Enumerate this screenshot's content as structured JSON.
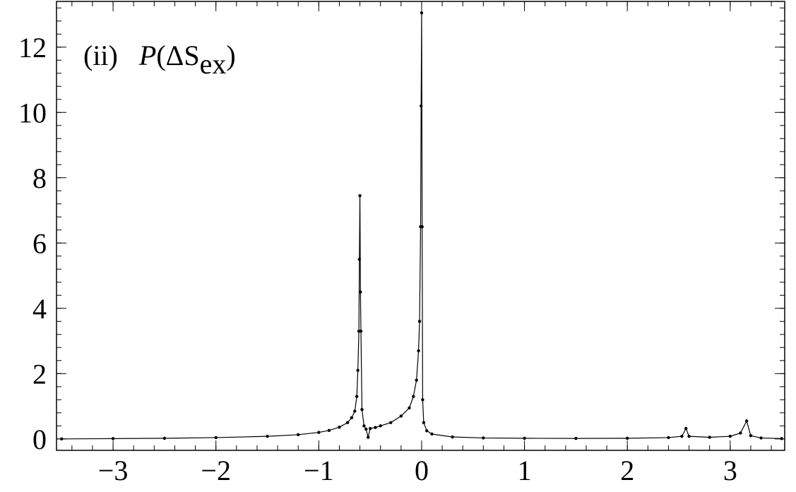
{
  "chart_data": {
    "type": "line",
    "annotation": {
      "tag": "(ii)",
      "parts": [
        "P",
        "(ΔS",
        "ex",
        ")"
      ]
    },
    "x": [
      -3.5,
      -3,
      -2.5,
      -2,
      -1.5,
      -1.2,
      -1.0,
      -0.9,
      -0.8,
      -0.72,
      -0.68,
      -0.65,
      -0.63,
      -0.62,
      -0.61,
      -0.605,
      -0.6,
      -0.595,
      -0.59,
      -0.58,
      -0.56,
      -0.54,
      -0.52,
      -0.5,
      -0.45,
      -0.4,
      -0.3,
      -0.2,
      -0.12,
      -0.08,
      -0.05,
      -0.03,
      -0.02,
      -0.01,
      -0.005,
      0,
      0.005,
      0.01,
      0.02,
      0.05,
      0.1,
      0.3,
      0.6,
      1.0,
      1.5,
      2.0,
      2.4,
      2.53,
      2.57,
      2.6,
      2.8,
      3.0,
      3.1,
      3.16,
      3.2,
      3.3,
      3.5
    ],
    "values": [
      0.0,
      0.01,
      0.02,
      0.04,
      0.08,
      0.13,
      0.2,
      0.26,
      0.36,
      0.5,
      0.65,
      0.85,
      1.3,
      2.1,
      3.3,
      5.5,
      7.45,
      4.5,
      3.3,
      0.9,
      0.4,
      0.3,
      0.05,
      0.32,
      0.35,
      0.4,
      0.5,
      0.7,
      0.95,
      1.3,
      1.8,
      2.7,
      3.6,
      6.5,
      10.2,
      13.05,
      6.5,
      1.2,
      0.5,
      0.25,
      0.15,
      0.06,
      0.03,
      0.02,
      0.015,
      0.02,
      0.04,
      0.08,
      0.32,
      0.08,
      0.05,
      0.08,
      0.18,
      0.55,
      0.1,
      0.03,
      0.01
    ],
    "color": "#000000",
    "xlim": [
      -3.55,
      3.53
    ],
    "ylim": [
      -0.35,
      13.4
    ],
    "xticks": [
      {
        "value": -3,
        "label": "−3"
      },
      {
        "value": -2,
        "label": "−2"
      },
      {
        "value": -1,
        "label": "−1"
      },
      0,
      1,
      2,
      3
    ],
    "yticks": [
      0,
      2,
      4,
      6,
      8,
      10,
      12
    ],
    "grid": false
  }
}
